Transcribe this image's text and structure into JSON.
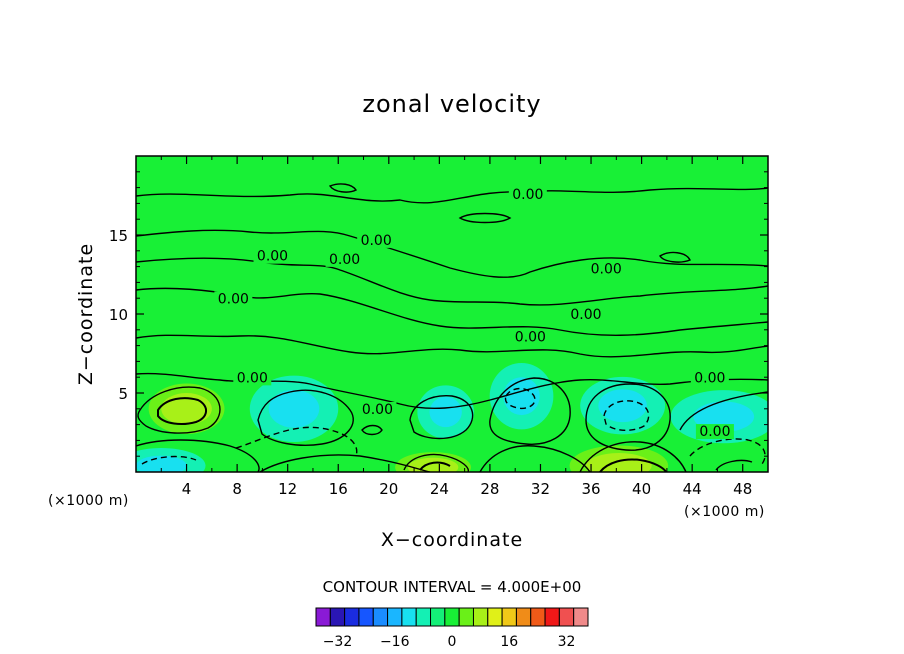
{
  "chart_data": {
    "type": "contour",
    "title": "zonal velocity",
    "xlabel": "X−coordinate",
    "ylabel": "Z−coordinate",
    "x_unit_label": "(×1000 m)",
    "y_unit_label": "(×1000 m)",
    "xlim": [
      0,
      50
    ],
    "ylim": [
      0,
      20
    ],
    "x_ticks": [
      4,
      8,
      12,
      16,
      20,
      24,
      28,
      32,
      36,
      40,
      44,
      48
    ],
    "x_tick_labels": [
      "4",
      "8",
      "12",
      "16",
      "20",
      "24",
      "28",
      "32",
      "36",
      "40",
      "44",
      "48"
    ],
    "y_ticks": [
      5,
      10,
      15
    ],
    "y_tick_labels": [
      "5",
      "10",
      "15"
    ],
    "contour_interval_text": "CONTOUR INTERVAL = 4.000E+00",
    "contour_labels": [
      {
        "text": "0.00",
        "x": 31.0,
        "z": 17.4
      },
      {
        "text": "0.00",
        "x": 19.0,
        "z": 14.5
      },
      {
        "text": "0.00",
        "x": 16.5,
        "z": 13.3
      },
      {
        "text": "0.00",
        "x": 10.8,
        "z": 13.5
      },
      {
        "text": "0.00",
        "x": 37.2,
        "z": 12.7
      },
      {
        "text": "0.00",
        "x": 7.7,
        "z": 10.8
      },
      {
        "text": "0.00",
        "x": 35.6,
        "z": 9.8
      },
      {
        "text": "0.00",
        "x": 31.2,
        "z": 8.4
      },
      {
        "text": "0.00",
        "x": 9.2,
        "z": 5.8
      },
      {
        "text": "0.00",
        "x": 45.4,
        "z": 5.8
      },
      {
        "text": "0.00",
        "x": 19.1,
        "z": 3.8
      },
      {
        "text": "0.00",
        "x": 45.8,
        "z": 2.4
      }
    ],
    "colorbar": {
      "levels": [
        -36,
        -32,
        -28,
        -24,
        -20,
        -16,
        -12,
        -8,
        -4,
        0,
        4,
        8,
        12,
        16,
        20,
        24,
        28,
        32,
        36
      ],
      "tick_labels": [
        "−32",
        "−16",
        "0",
        "16",
        "32"
      ],
      "tick_values": [
        -32,
        -16,
        0,
        16,
        32
      ],
      "colors": [
        "#8a1ad6",
        "#2a16b4",
        "#1a2ce0",
        "#1656ff",
        "#1a8cff",
        "#1ab6ff",
        "#18e0f0",
        "#14f0b4",
        "#14f078",
        "#18f036",
        "#6af018",
        "#a8f018",
        "#e0f018",
        "#f0c818",
        "#f08c18",
        "#f05a18",
        "#f01818",
        "#f05050",
        "#f08a8a"
      ]
    },
    "field_regions": [
      {
        "kind": "positive_core",
        "x_center": 4.0,
        "z_center": 4.0,
        "x_radius": 2.0,
        "z_radius": 1.0
      },
      {
        "kind": "negative_core",
        "x_center": 2.0,
        "z_center": 0.4,
        "x_radius": 2.5,
        "z_radius": 0.8
      },
      {
        "kind": "negative_core",
        "x_center": 30.5,
        "z_center": 4.8,
        "x_radius": 1.8,
        "z_radius": 1.5
      },
      {
        "kind": "negative_core",
        "x_center": 38.5,
        "z_center": 4.2,
        "x_radius": 2.4,
        "z_radius": 1.3
      },
      {
        "kind": "positive_core",
        "x_center": 23.5,
        "z_center": 0.3,
        "x_radius": 2.0,
        "z_radius": 0.6
      },
      {
        "kind": "positive_core",
        "x_center": 38.2,
        "z_center": 0.4,
        "x_radius": 2.6,
        "z_radius": 0.8
      },
      {
        "kind": "negative_core",
        "x_center": 12.5,
        "z_center": 4.0,
        "x_radius": 2.5,
        "z_radius": 1.5
      },
      {
        "kind": "negative_core",
        "x_center": 24.5,
        "z_center": 3.8,
        "x_radius": 1.6,
        "z_radius": 1.2
      },
      {
        "kind": "negative_core",
        "x_center": 46.5,
        "z_center": 3.5,
        "x_radius": 3.0,
        "z_radius": 1.2
      }
    ]
  }
}
